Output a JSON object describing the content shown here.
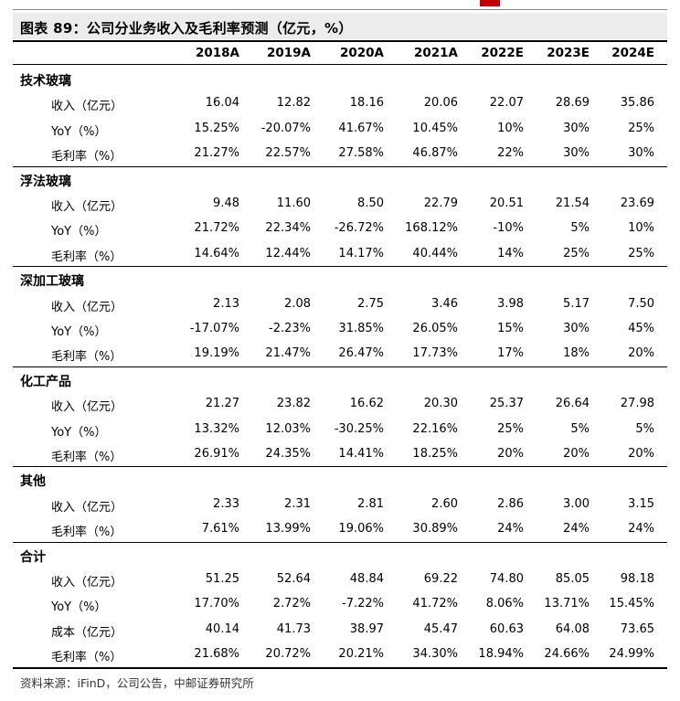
{
  "figure_title": "图表 89：公司分业务收入及毛利率预测（亿元，%）",
  "years": [
    "2018A",
    "2019A",
    "2020A",
    "2021A",
    "2022E",
    "2023E",
    "2024E"
  ],
  "sections": [
    {
      "name": "技术玻璃",
      "rows": [
        {
          "label": "收入（亿元）",
          "values": [
            "16.04",
            "12.82",
            "18.16",
            "20.06",
            "22.07",
            "28.69",
            "35.86"
          ]
        },
        {
          "label": "YoY（%）",
          "values": [
            "15.25%",
            "-20.07%",
            "41.67%",
            "10.45%",
            "10%",
            "30%",
            "25%"
          ]
        },
        {
          "label": "毛利率（%）",
          "values": [
            "21.27%",
            "22.57%",
            "27.58%",
            "46.87%",
            "22%",
            "30%",
            "30%"
          ]
        }
      ]
    },
    {
      "name": "浮法玻璃",
      "rows": [
        {
          "label": "收入（亿元）",
          "values": [
            "9.48",
            "11.60",
            "8.50",
            "22.79",
            "20.51",
            "21.54",
            "23.69"
          ]
        },
        {
          "label": "YoY（%）",
          "values": [
            "21.72%",
            "22.34%",
            "-26.72%",
            "168.12%",
            "-10%",
            "5%",
            "10%"
          ]
        },
        {
          "label": "毛利率（%）",
          "values": [
            "14.64%",
            "12.44%",
            "14.17%",
            "40.44%",
            "14%",
            "25%",
            "25%"
          ]
        }
      ]
    },
    {
      "name": "深加工玻璃",
      "rows": [
        {
          "label": "收入（亿元）",
          "values": [
            "2.13",
            "2.08",
            "2.75",
            "3.46",
            "3.98",
            "5.17",
            "7.50"
          ]
        },
        {
          "label": "YoY（%）",
          "values": [
            "-17.07%",
            "-2.23%",
            "31.85%",
            "26.05%",
            "15%",
            "30%",
            "45%"
          ]
        },
        {
          "label": "毛利率（%）",
          "values": [
            "19.19%",
            "21.47%",
            "26.47%",
            "17.73%",
            "17%",
            "18%",
            "20%"
          ]
        }
      ]
    },
    {
      "name": "化工产品",
      "rows": [
        {
          "label": "收入（亿元）",
          "values": [
            "21.27",
            "23.82",
            "16.62",
            "20.30",
            "25.37",
            "26.64",
            "27.98"
          ]
        },
        {
          "label": "YoY（%）",
          "values": [
            "13.32%",
            "12.03%",
            "-30.25%",
            "22.16%",
            "25%",
            "5%",
            "5%"
          ]
        },
        {
          "label": "毛利率（%）",
          "values": [
            "26.91%",
            "24.35%",
            "14.41%",
            "18.25%",
            "20%",
            "20%",
            "20%"
          ]
        }
      ]
    },
    {
      "name": "其他",
      "rows": [
        {
          "label": "收入（亿元）",
          "values": [
            "2.33",
            "2.31",
            "2.81",
            "2.60",
            "2.86",
            "3.00",
            "3.15"
          ]
        },
        {
          "label": "毛利率（%）",
          "values": [
            "7.61%",
            "13.99%",
            "19.06%",
            "30.89%",
            "24%",
            "24%",
            "24%"
          ]
        }
      ]
    },
    {
      "name": "合计",
      "rows": [
        {
          "label": "收入（亿元）",
          "values": [
            "51.25",
            "52.64",
            "48.84",
            "69.22",
            "74.80",
            "85.05",
            "98.18"
          ]
        },
        {
          "label": "YoY（%）",
          "values": [
            "17.70%",
            "2.72%",
            "-7.22%",
            "41.72%",
            "8.06%",
            "13.71%",
            "15.45%"
          ]
        },
        {
          "label": "成本（亿元）",
          "values": [
            "40.14",
            "41.73",
            "38.97",
            "45.47",
            "60.63",
            "64.08",
            "73.65"
          ]
        },
        {
          "label": "毛利率（%）",
          "values": [
            "21.68%",
            "20.72%",
            "20.21%",
            "34.30%",
            "18.94%",
            "24.66%",
            "24.99%"
          ]
        }
      ]
    }
  ],
  "source": "资料来源：iFinD，公司公告，中邮证券研究所",
  "colors": {
    "accent": "#c00000",
    "title_band": "#ececec"
  }
}
